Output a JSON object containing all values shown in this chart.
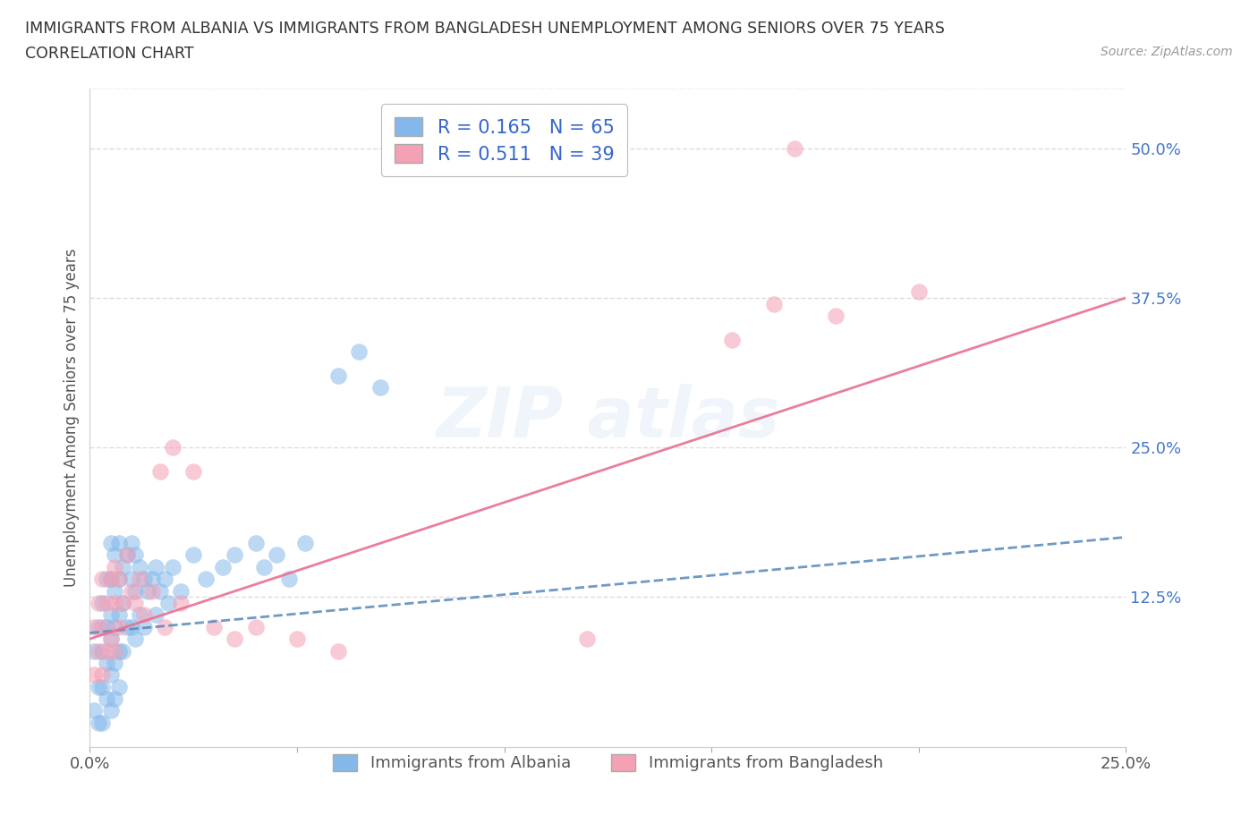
{
  "title_line1": "IMMIGRANTS FROM ALBANIA VS IMMIGRANTS FROM BANGLADESH UNEMPLOYMENT AMONG SENIORS OVER 75 YEARS",
  "title_line2": "CORRELATION CHART",
  "source": "Source: ZipAtlas.com",
  "ylabel": "Unemployment Among Seniors over 75 years",
  "xlim": [
    0.0,
    0.25
  ],
  "ylim": [
    0.0,
    0.55
  ],
  "xticks": [
    0.0,
    0.05,
    0.1,
    0.15,
    0.2,
    0.25
  ],
  "xtick_labels": [
    "0.0%",
    "",
    "",
    "",
    "",
    "25.0%"
  ],
  "ytick_right": [
    0.0,
    0.125,
    0.25,
    0.375,
    0.5
  ],
  "ytick_right_labels": [
    "",
    "12.5%",
    "25.0%",
    "37.5%",
    "50.0%"
  ],
  "albania_R": 0.165,
  "albania_N": 65,
  "bangladesh_R": 0.511,
  "bangladesh_N": 39,
  "albania_color": "#85B8EA",
  "bangladesh_color": "#F4A0B5",
  "albania_line_color": "#5588BB",
  "bangladesh_line_color": "#E87090",
  "albania_x": [
    0.001,
    0.001,
    0.002,
    0.002,
    0.002,
    0.003,
    0.003,
    0.003,
    0.003,
    0.004,
    0.004,
    0.004,
    0.004,
    0.005,
    0.005,
    0.005,
    0.005,
    0.005,
    0.005,
    0.006,
    0.006,
    0.006,
    0.006,
    0.006,
    0.007,
    0.007,
    0.007,
    0.007,
    0.007,
    0.008,
    0.008,
    0.008,
    0.009,
    0.009,
    0.01,
    0.01,
    0.01,
    0.011,
    0.011,
    0.011,
    0.012,
    0.012,
    0.013,
    0.013,
    0.014,
    0.015,
    0.016,
    0.016,
    0.017,
    0.018,
    0.019,
    0.02,
    0.022,
    0.025,
    0.028,
    0.032,
    0.035,
    0.04,
    0.042,
    0.045,
    0.048,
    0.052,
    0.06,
    0.065,
    0.07
  ],
  "albania_y": [
    0.08,
    0.03,
    0.1,
    0.05,
    0.02,
    0.12,
    0.08,
    0.05,
    0.02,
    0.14,
    0.1,
    0.07,
    0.04,
    0.17,
    0.14,
    0.11,
    0.09,
    0.06,
    0.03,
    0.16,
    0.13,
    0.1,
    0.07,
    0.04,
    0.17,
    0.14,
    0.11,
    0.08,
    0.05,
    0.15,
    0.12,
    0.08,
    0.16,
    0.1,
    0.17,
    0.14,
    0.1,
    0.16,
    0.13,
    0.09,
    0.15,
    0.11,
    0.14,
    0.1,
    0.13,
    0.14,
    0.15,
    0.11,
    0.13,
    0.14,
    0.12,
    0.15,
    0.13,
    0.16,
    0.14,
    0.15,
    0.16,
    0.17,
    0.15,
    0.16,
    0.14,
    0.17,
    0.31,
    0.33,
    0.3
  ],
  "bangladesh_x": [
    0.001,
    0.001,
    0.002,
    0.002,
    0.003,
    0.003,
    0.003,
    0.004,
    0.004,
    0.005,
    0.005,
    0.006,
    0.006,
    0.006,
    0.007,
    0.007,
    0.008,
    0.009,
    0.01,
    0.011,
    0.012,
    0.013,
    0.015,
    0.017,
    0.018,
    0.02,
    0.022,
    0.025,
    0.03,
    0.035,
    0.04,
    0.05,
    0.06,
    0.12,
    0.155,
    0.165,
    0.17,
    0.18,
    0.2
  ],
  "bangladesh_y": [
    0.1,
    0.06,
    0.12,
    0.08,
    0.14,
    0.1,
    0.06,
    0.12,
    0.08,
    0.14,
    0.09,
    0.15,
    0.12,
    0.08,
    0.14,
    0.1,
    0.12,
    0.16,
    0.13,
    0.12,
    0.14,
    0.11,
    0.13,
    0.23,
    0.1,
    0.25,
    0.12,
    0.23,
    0.1,
    0.09,
    0.1,
    0.09,
    0.08,
    0.09,
    0.34,
    0.37,
    0.5,
    0.36,
    0.38
  ],
  "legend_label_albania": "Immigrants from Albania",
  "legend_label_bangladesh": "Immigrants from Bangladesh",
  "background_color": "#ffffff",
  "grid_color": "#cccccc"
}
